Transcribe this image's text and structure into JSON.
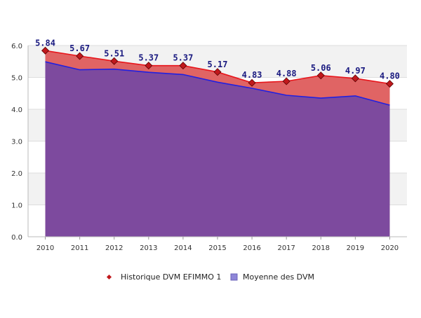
{
  "chart_data": {
    "type": "area",
    "title": "",
    "xlabel": "",
    "ylabel": "",
    "x": [
      "2010",
      "2011",
      "2012",
      "2013",
      "2014",
      "2015",
      "2016",
      "2017",
      "2018",
      "2019",
      "2020"
    ],
    "ylim": [
      0,
      6
    ],
    "yticks": [
      "0.0",
      "1.0",
      "2.0",
      "3.0",
      "4.0",
      "5.0",
      "6.0"
    ],
    "grid": true,
    "legend_position": "bottom",
    "series": [
      {
        "name": "Historique DVM EFIMMO 1",
        "values": [
          5.84,
          5.67,
          5.51,
          5.37,
          5.37,
          5.17,
          4.83,
          4.88,
          5.06,
          4.97,
          4.8
        ],
        "labels": [
          "5.84",
          "5.67",
          "5.51",
          "5.37",
          "5.37",
          "5.17",
          "4.83",
          "4.88",
          "5.06",
          "4.97",
          "4.80"
        ],
        "line_color": "#e8151b",
        "fill_color": "#e06464",
        "marker_color": "#c0181c"
      },
      {
        "name": "Moyenne des DVM",
        "values": [
          5.49,
          5.24,
          5.26,
          5.16,
          5.09,
          4.85,
          4.66,
          4.44,
          4.35,
          4.42,
          4.13
        ],
        "line_color": "#2020e0",
        "fill_color": "#7d4a9e",
        "marker_color": "#8e86d8"
      }
    ]
  }
}
